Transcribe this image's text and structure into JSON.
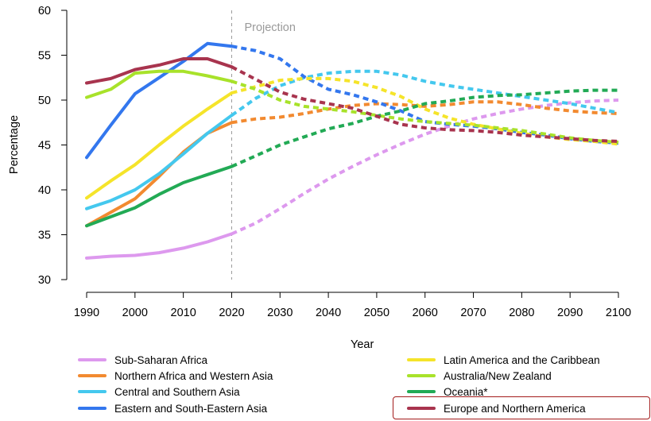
{
  "chart_data": {
    "type": "line",
    "title": "",
    "xlabel": "Year",
    "ylabel": "Percentage",
    "xlim": [
      1990,
      2100
    ],
    "ylim": [
      30,
      60
    ],
    "xticks": [
      1990,
      2000,
      2010,
      2020,
      2030,
      2040,
      2050,
      2060,
      2070,
      2080,
      2090,
      2100
    ],
    "yticks": [
      30,
      35,
      40,
      45,
      50,
      55,
      60
    ],
    "grid": false,
    "projection": {
      "label": "Projection",
      "x": 2020
    },
    "legend_position": "bottom",
    "highlighted_series": "Europe and Northern America",
    "series": [
      {
        "name": "Sub-Saharan Africa",
        "color": "#dd99ee",
        "x": [
          1990,
          1995,
          2000,
          2005,
          2010,
          2015,
          2020,
          2025,
          2030,
          2035,
          2040,
          2045,
          2050,
          2055,
          2060,
          2065,
          2070,
          2075,
          2080,
          2085,
          2090,
          2095,
          2100
        ],
        "y": [
          32.4,
          32.6,
          32.7,
          33.0,
          33.5,
          34.2,
          35.1,
          36.3,
          37.9,
          39.6,
          41.2,
          42.6,
          43.9,
          45.1,
          46.2,
          47.1,
          47.9,
          48.5,
          49.0,
          49.4,
          49.7,
          49.9,
          50.0
        ]
      },
      {
        "name": "Northern Africa and Western Asia",
        "color": "#f28a30",
        "x": [
          1990,
          1995,
          2000,
          2005,
          2010,
          2015,
          2020,
          2025,
          2030,
          2035,
          2040,
          2045,
          2050,
          2055,
          2060,
          2065,
          2070,
          2075,
          2080,
          2085,
          2090,
          2095,
          2100
        ],
        "y": [
          36.0,
          37.5,
          39.0,
          41.5,
          44.2,
          46.3,
          47.5,
          47.9,
          48.1,
          48.5,
          49.0,
          49.4,
          49.6,
          49.5,
          49.3,
          49.5,
          49.8,
          49.8,
          49.5,
          49.1,
          48.8,
          48.6,
          48.5
        ]
      },
      {
        "name": "Central and Southern Asia",
        "color": "#44c8ee",
        "x": [
          1990,
          1995,
          2000,
          2005,
          2010,
          2015,
          2020,
          2025,
          2030,
          2035,
          2040,
          2045,
          2050,
          2055,
          2060,
          2065,
          2070,
          2075,
          2080,
          2085,
          2090,
          2095,
          2100
        ],
        "y": [
          37.9,
          38.8,
          40.0,
          41.8,
          44.0,
          46.3,
          48.3,
          50.2,
          51.6,
          52.5,
          53.0,
          53.2,
          53.2,
          52.8,
          52.1,
          51.6,
          51.2,
          50.8,
          50.4,
          50.0,
          49.6,
          49.1,
          48.6
        ]
      },
      {
        "name": "Eastern and South-Eastern Asia",
        "color": "#3377ee",
        "x": [
          1990,
          1995,
          2000,
          2005,
          2010,
          2015,
          2020,
          2025,
          2030,
          2035,
          2040,
          2045,
          2050,
          2055,
          2060,
          2065,
          2070,
          2075,
          2080,
          2085,
          2090,
          2095,
          2100
        ],
        "y": [
          43.6,
          47.2,
          50.7,
          52.5,
          54.3,
          56.3,
          56.0,
          55.5,
          54.6,
          52.6,
          51.2,
          50.6,
          49.8,
          48.8,
          47.6,
          47.3,
          47.1,
          46.8,
          46.4,
          46.1,
          45.7,
          45.4,
          45.2
        ]
      },
      {
        "name": "Latin America and the Caribbean",
        "color": "#f5e42a",
        "x": [
          1990,
          1995,
          2000,
          2005,
          2010,
          2015,
          2020,
          2025,
          2030,
          2035,
          2040,
          2045,
          2050,
          2055,
          2060,
          2065,
          2070,
          2075,
          2080,
          2085,
          2090,
          2095,
          2100
        ],
        "y": [
          39.1,
          41.0,
          42.8,
          45.0,
          47.1,
          49.0,
          50.8,
          51.5,
          52.2,
          52.4,
          52.4,
          52.1,
          51.4,
          50.4,
          49.0,
          48.0,
          47.3,
          46.8,
          46.3,
          45.9,
          45.6,
          45.4,
          45.1
        ]
      },
      {
        "name": "Australia/New Zealand",
        "color": "#a8e22a",
        "x": [
          1990,
          1995,
          2000,
          2005,
          2010,
          2015,
          2020,
          2025,
          2030,
          2035,
          2040,
          2045,
          2050,
          2055,
          2060,
          2065,
          2070,
          2075,
          2080,
          2085,
          2090,
          2095,
          2100
        ],
        "y": [
          50.3,
          51.2,
          53.0,
          53.2,
          53.2,
          52.7,
          52.1,
          51.2,
          50.0,
          49.3,
          49.0,
          48.7,
          48.3,
          47.9,
          47.6,
          47.4,
          47.2,
          46.9,
          46.6,
          46.2,
          45.8,
          45.5,
          45.3
        ]
      },
      {
        "name": "Oceania*",
        "color": "#22aa55",
        "x": [
          1990,
          1995,
          2000,
          2005,
          2010,
          2015,
          2020,
          2025,
          2030,
          2035,
          2040,
          2045,
          2050,
          2055,
          2060,
          2065,
          2070,
          2075,
          2080,
          2085,
          2090,
          2095,
          2100
        ],
        "y": [
          36.0,
          37.0,
          38.0,
          39.5,
          40.8,
          41.7,
          42.6,
          43.8,
          45.0,
          45.9,
          46.8,
          47.4,
          48.2,
          48.8,
          49.6,
          49.9,
          50.3,
          50.5,
          50.6,
          50.8,
          51.0,
          51.1,
          51.1
        ]
      },
      {
        "name": "Europe and Northern America",
        "color": "#a8344e",
        "x": [
          1990,
          1995,
          2000,
          2005,
          2010,
          2015,
          2020,
          2025,
          2030,
          2035,
          2040,
          2045,
          2050,
          2055,
          2060,
          2065,
          2070,
          2075,
          2080,
          2085,
          2090,
          2095,
          2100
        ],
        "y": [
          51.9,
          52.4,
          53.4,
          53.9,
          54.6,
          54.6,
          53.7,
          52.3,
          50.9,
          50.1,
          49.6,
          49.1,
          48.2,
          47.3,
          46.9,
          46.7,
          46.6,
          46.4,
          46.1,
          45.9,
          45.7,
          45.5,
          45.4
        ]
      }
    ]
  }
}
